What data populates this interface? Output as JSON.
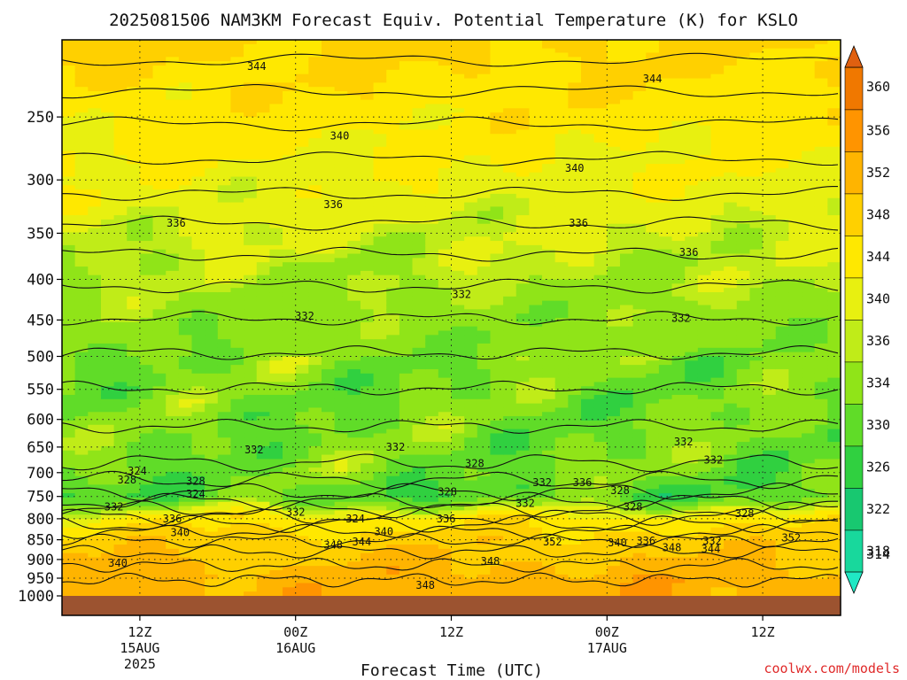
{
  "chart_data": {
    "type": "heatmap",
    "title": "2025081506 NAM3KM Forecast Equiv. Potential Temperature (K) for KSLO",
    "xlabel": "Forecast Time (UTC)",
    "ylabel": "",
    "credit": "coolwx.com/models",
    "y_scale": "log-pressure",
    "y_range_hPa": [
      1000,
      200
    ],
    "y_ticks": [
      250,
      300,
      350,
      400,
      450,
      500,
      550,
      600,
      650,
      700,
      750,
      800,
      850,
      900,
      950,
      1000
    ],
    "x_range_hours": [
      6,
      66
    ],
    "x_ticks": [
      {
        "hour": 12,
        "l1": "12Z",
        "l2": "15AUG",
        "l3": "2025"
      },
      {
        "hour": 24,
        "l1": "00Z",
        "l2": "16AUG",
        "l3": ""
      },
      {
        "hour": 36,
        "l1": "12Z",
        "l2": "",
        "l3": ""
      },
      {
        "hour": 48,
        "l1": "00Z",
        "l2": "17AUG",
        "l3": ""
      },
      {
        "hour": 60,
        "l1": "12Z",
        "l2": "",
        "l3": ""
      }
    ],
    "grid": true,
    "colorbar": {
      "levels": [
        314,
        318,
        322,
        326,
        330,
        334,
        336,
        340,
        344,
        348,
        352,
        356,
        360
      ],
      "labels": [
        "314",
        "318",
        "322",
        "326",
        "330",
        "334",
        "336",
        "340",
        "344",
        "348",
        "352",
        "356",
        "360"
      ],
      "colors": [
        "#20e8c4",
        "#18d89c",
        "#18c870",
        "#30d040",
        "#60dc28",
        "#90e418",
        "#c0ec18",
        "#e8f010",
        "#ffe800",
        "#ffd000",
        "#ffb400",
        "#ff9400",
        "#f07800",
        "#e06010"
      ]
    },
    "profile": {
      "pressure_hPa": [
        200,
        250,
        300,
        350,
        400,
        450,
        500,
        550,
        600,
        650,
        700,
        750,
        800,
        850,
        900,
        950,
        1000
      ],
      "theta_e_K": [
        345,
        342,
        339,
        336,
        334,
        332,
        331,
        330,
        330,
        330,
        330,
        327,
        342,
        346,
        348,
        350,
        350
      ]
    },
    "contour_labels": [
      {
        "text": "344",
        "hour": 21.0,
        "p": 216
      },
      {
        "text": "344",
        "hour": 51.5,
        "p": 224
      },
      {
        "text": "340",
        "hour": 27.4,
        "p": 264
      },
      {
        "text": "340",
        "hour": 45.5,
        "p": 290
      },
      {
        "text": "336",
        "hour": 26.9,
        "p": 322
      },
      {
        "text": "336",
        "hour": 14.8,
        "p": 340
      },
      {
        "text": "336",
        "hour": 45.8,
        "p": 340
      },
      {
        "text": "336",
        "hour": 54.3,
        "p": 370
      },
      {
        "text": "332",
        "hour": 36.8,
        "p": 418
      },
      {
        "text": "332",
        "hour": 24.7,
        "p": 445
      },
      {
        "text": "332",
        "hour": 53.7,
        "p": 448
      },
      {
        "text": "332",
        "hour": 20.8,
        "p": 655
      },
      {
        "text": "332",
        "hour": 31.7,
        "p": 650
      },
      {
        "text": "332",
        "hour": 53.9,
        "p": 640
      },
      {
        "text": "332",
        "hour": 56.2,
        "p": 675
      },
      {
        "text": "328",
        "hour": 37.8,
        "p": 682
      },
      {
        "text": "324",
        "hour": 11.8,
        "p": 697
      },
      {
        "text": "328",
        "hour": 11.0,
        "p": 715
      },
      {
        "text": "328",
        "hour": 16.3,
        "p": 718
      },
      {
        "text": "336",
        "hour": 46.1,
        "p": 720
      },
      {
        "text": "332",
        "hour": 43.0,
        "p": 720
      },
      {
        "text": "328",
        "hour": 35.7,
        "p": 740
      },
      {
        "text": "328",
        "hour": 49.0,
        "p": 737
      },
      {
        "text": "324",
        "hour": 16.3,
        "p": 745
      },
      {
        "text": "332",
        "hour": 10.0,
        "p": 773
      },
      {
        "text": "332",
        "hour": 24.0,
        "p": 785
      },
      {
        "text": "332",
        "hour": 41.7,
        "p": 765
      },
      {
        "text": "328",
        "hour": 50.0,
        "p": 773
      },
      {
        "text": "328",
        "hour": 58.6,
        "p": 788
      },
      {
        "text": "336",
        "hour": 14.5,
        "p": 800
      },
      {
        "text": "324",
        "hour": 28.6,
        "p": 800
      },
      {
        "text": "336",
        "hour": 35.6,
        "p": 800
      },
      {
        "text": "340",
        "hour": 30.8,
        "p": 830
      },
      {
        "text": "340",
        "hour": 15.1,
        "p": 833
      },
      {
        "text": "344",
        "hour": 29.1,
        "p": 855
      },
      {
        "text": "348",
        "hour": 26.9,
        "p": 863
      },
      {
        "text": "352",
        "hour": 43.8,
        "p": 855
      },
      {
        "text": "340",
        "hour": 48.8,
        "p": 858
      },
      {
        "text": "336",
        "hour": 51.0,
        "p": 853
      },
      {
        "text": "348",
        "hour": 53.0,
        "p": 870
      },
      {
        "text": "332",
        "hour": 56.1,
        "p": 853
      },
      {
        "text": "344",
        "hour": 56.0,
        "p": 873
      },
      {
        "text": "352",
        "hour": 62.2,
        "p": 845
      },
      {
        "text": "340",
        "hour": 10.3,
        "p": 910
      },
      {
        "text": "348",
        "hour": 39.0,
        "p": 905
      },
      {
        "text": "348",
        "hour": 34.0,
        "p": 970
      }
    ]
  }
}
